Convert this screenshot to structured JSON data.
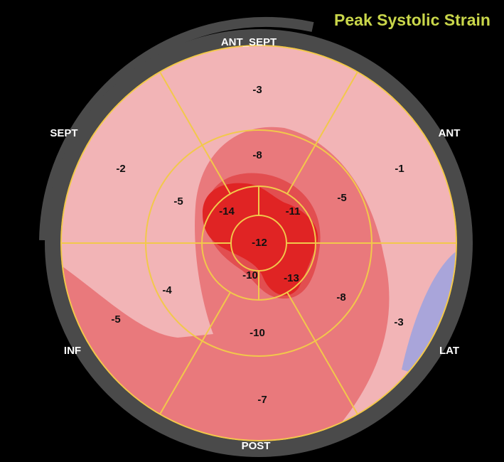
{
  "title": "Peak Systolic Strain",
  "walls": [
    "ANT_SEPT",
    "ANT",
    "LAT",
    "POST",
    "INF",
    "SEPT"
  ],
  "segments": {
    "basal": [
      -3,
      -1,
      -3,
      -7,
      -5,
      -2
    ],
    "mid": [
      -8,
      -5,
      -8,
      -10,
      -4,
      -5
    ],
    "apical": [
      -14,
      -11,
      -13,
      -10
    ],
    "apex": -12
  }
}
